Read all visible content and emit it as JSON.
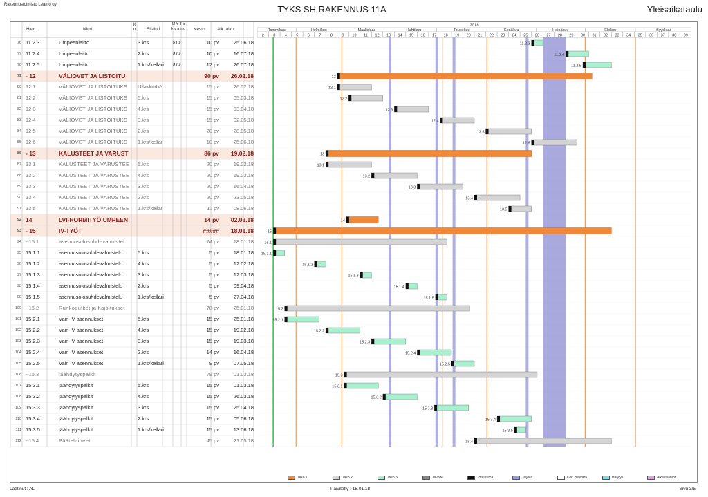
{
  "header": {
    "company": "Rakennustoimisto Leamo oy",
    "title": "TYKS SH RAKENNUS 11A",
    "schedule_type": "Yleisaikataulu"
  },
  "columns": {
    "hier": "Hier",
    "name": "Nimi",
    "ko": "K o",
    "location": "Sijainti",
    "myt": "M Y T a k y a s o",
    "duration": "Kesto",
    "start": "Aik. alku"
  },
  "timeline": {
    "year": "2018",
    "months": [
      "Tammikuu",
      "Helmikuu",
      "Maaliskuu",
      "Huhtikuu",
      "Toukokuu",
      "Kesäkuu",
      "Heinäkuu",
      "Elokuu",
      "Syyskuu"
    ],
    "weeks": [
      "2",
      "3",
      "4",
      "5",
      "6",
      "7",
      "8",
      "9",
      "10",
      "11",
      "12",
      "13",
      "14",
      "15",
      "16",
      "17",
      "18",
      "19",
      "20",
      "21",
      "22",
      "23",
      "24",
      "25",
      "26",
      "27",
      "28",
      "29",
      "30",
      "31",
      "32",
      "33",
      "34",
      "35",
      "36",
      "37",
      "38",
      "39"
    ]
  },
  "rows": [
    {
      "num": "76",
      "hier": "11.2.3",
      "name": "Umpeenlaitto",
      "loc": "3.krs",
      "flags": "♯ r ♯",
      "dur": "10 pv",
      "start": "25.06.18",
      "level": 3,
      "bar": {
        "s": 26,
        "e": 27,
        "label": "11.2.3"
      }
    },
    {
      "num": "77",
      "hier": "11.2.4",
      "name": "Umpeenlaitto",
      "loc": "2.krs",
      "flags": "♯ r ♯",
      "dur": "10 pv",
      "start": "16.07.18",
      "level": 3,
      "bar": {
        "s": 29,
        "e": 31,
        "label": "11.2.4"
      }
    },
    {
      "num": "78",
      "hier": "11.2.5",
      "name": "Umpeenlaitto",
      "loc": "1.krs/kellari",
      "flags": "♯ r ♯",
      "dur": "12 pv",
      "start": "26.07.18",
      "level": 3,
      "bar": {
        "s": 30.5,
        "e": 33,
        "label": "11.2.5"
      }
    },
    {
      "num": "79",
      "hier": "- 12",
      "name": "VÄLIOVET JA LISTOITU",
      "loc": "",
      "flags": "",
      "dur": "90 pv",
      "start": "26.02.18",
      "level": 1,
      "bar": {
        "s": 9,
        "e": 31.3,
        "label": "12"
      }
    },
    {
      "num": "80",
      "hier": "12.1",
      "name": "VÄLIOVET JA LISTOITUKS",
      "loc": "Ullakko/IV-",
      "flags": "",
      "dur": "15 pv",
      "start": "26.02.18",
      "level": 2,
      "bar": {
        "s": 9,
        "e": 12,
        "label": "12.1"
      }
    },
    {
      "num": "81",
      "hier": "12.2",
      "name": "VÄLIOVET JA LISTOITUKS",
      "loc": "5.krs",
      "flags": "",
      "dur": "15 pv",
      "start": "05.03.18",
      "level": 2,
      "bar": {
        "s": 10,
        "e": 13,
        "label": "12.2"
      }
    },
    {
      "num": "82",
      "hier": "12.3",
      "name": "VÄLIOVET JA LISTOITUKS",
      "loc": "4.krs",
      "flags": "",
      "dur": "15 pv",
      "start": "03.04.18",
      "level": 2,
      "bar": {
        "s": 14,
        "e": 17,
        "label": "12.3"
      }
    },
    {
      "num": "83",
      "hier": "12.4",
      "name": "VÄLIOVET JA LISTOITUKS",
      "loc": "3.krs",
      "flags": "",
      "dur": "15 pv",
      "start": "02.05.18",
      "level": 2,
      "bar": {
        "s": 18,
        "e": 21,
        "label": "12.4"
      }
    },
    {
      "num": "84",
      "hier": "12.5",
      "name": "VÄLIOVET JA LISTOITUKS",
      "loc": "2.krs",
      "flags": "",
      "dur": "20 pv",
      "start": "28.05.18",
      "level": 2,
      "bar": {
        "s": 22,
        "e": 26,
        "label": "12.5"
      }
    },
    {
      "num": "85",
      "hier": "12.6",
      "name": "VÄLIOVET JA LISTOITUKS",
      "loc": "1.krs/kellar",
      "flags": "",
      "dur": "10 pv",
      "start": "25.06.18",
      "level": 2,
      "bar": {
        "s": 26,
        "e": 30,
        "label": "12.6"
      }
    },
    {
      "num": "86",
      "hier": "- 13",
      "name": "KALUSTEET JA VARUST",
      "loc": "",
      "flags": "",
      "dur": "86 pv",
      "start": "19.02.18",
      "level": 1,
      "bar": {
        "s": 8,
        "e": 26,
        "label": "13"
      }
    },
    {
      "num": "87",
      "hier": "13.1",
      "name": "KALUSTEET JA VARUSTEE",
      "loc": "5.krs",
      "flags": "",
      "dur": "20 pv",
      "start": "19.02.18",
      "level": 2,
      "bar": {
        "s": 8,
        "e": 12,
        "label": "13.1"
      }
    },
    {
      "num": "88",
      "hier": "13.2",
      "name": "KALUSTEET JA VARUSTEE",
      "loc": "4.krs",
      "flags": "",
      "dur": "20 pv",
      "start": "19.03.18",
      "level": 2,
      "bar": {
        "s": 12,
        "e": 16,
        "label": "13.2"
      }
    },
    {
      "num": "89",
      "hier": "13.3",
      "name": "KALUSTEET JA VARUSTEE",
      "loc": "3.krs",
      "flags": "",
      "dur": "20 pv",
      "start": "16.04.18",
      "level": 2,
      "bar": {
        "s": 16,
        "e": 20,
        "label": "13.3"
      }
    },
    {
      "num": "90",
      "hier": "13.4",
      "name": "KALUSTEET JA VARUSTEE",
      "loc": "2.krs",
      "flags": "",
      "dur": "20 pv",
      "start": "23.05.18",
      "level": 2,
      "bar": {
        "s": 21,
        "e": 25,
        "label": "13.4"
      }
    },
    {
      "num": "91",
      "hier": "13.5",
      "name": "KALUSTEET JA VARUSTEE",
      "loc": "1.krs/kellar",
      "flags": "",
      "dur": "11 pv",
      "start": "08.06.18",
      "level": 2,
      "bar": {
        "s": 24,
        "e": 26,
        "label": "13.5"
      }
    },
    {
      "num": "92",
      "hier": "14",
      "name": "LVI-HORMITYÖ UMPEEN",
      "loc": "",
      "flags": "",
      "dur": "14 pv",
      "start": "02.03.18",
      "level": 1,
      "bar": {
        "s": 9.8,
        "e": 12.6,
        "label": "14"
      }
    },
    {
      "num": "93",
      "hier": "- 15",
      "name": "IV-TYÖT",
      "loc": "",
      "flags": "",
      "dur": "#####",
      "start": "18.01.18",
      "level": 1,
      "bar": {
        "s": 3.4,
        "e": 33,
        "label": "15"
      }
    },
    {
      "num": "94",
      "hier": "- 15.1",
      "name": "asennusolosuhdevalmistel",
      "loc": "",
      "flags": "",
      "dur": "74 pv",
      "start": "18.01.18",
      "level": 2,
      "bar": {
        "s": 3.4,
        "e": 18.6,
        "label": "15.1"
      }
    },
    {
      "num": "95",
      "hier": "15.1.1",
      "name": "asennusolosuhdevalmistelu",
      "loc": "5.krs",
      "flags": "",
      "dur": "5 pv",
      "start": "18.01.18",
      "level": 3,
      "bar": {
        "s": 3.4,
        "e": 4.4,
        "label": "15.1.1"
      }
    },
    {
      "num": "96",
      "hier": "15.1.2",
      "name": "asennusolosuhdevalmistelu",
      "loc": "4.krs",
      "flags": "",
      "dur": "5 pv",
      "start": "12.02.18",
      "level": 3,
      "bar": {
        "s": 7,
        "e": 8,
        "label": "15.1.2"
      }
    },
    {
      "num": "97",
      "hier": "15.1.3",
      "name": "asennusolosuhdevalmistelu",
      "loc": "3.krs",
      "flags": "",
      "dur": "5 pv",
      "start": "12.03.18",
      "level": 3,
      "bar": {
        "s": 11,
        "e": 12,
        "label": "15.1.3"
      }
    },
    {
      "num": "98",
      "hier": "15.1.4",
      "name": "asennusolosuhdevalmistelu",
      "loc": "2.krs",
      "flags": "",
      "dur": "5 pv",
      "start": "09.04.18",
      "level": 3,
      "bar": {
        "s": 15,
        "e": 16,
        "label": "15.1.4"
      }
    },
    {
      "num": "99",
      "hier": "15.1.5",
      "name": "asennusolosuhdevalmistelu",
      "loc": "1.krs/kellari",
      "flags": "",
      "dur": "5 pv",
      "start": "27.04.18",
      "level": 3,
      "bar": {
        "s": 17.6,
        "e": 18.6,
        "label": "15.1.5"
      }
    },
    {
      "num": "100",
      "hier": "- 15.2",
      "name": "Runkoputket ja hajoitukset",
      "loc": "",
      "flags": "",
      "dur": "78 pv",
      "start": "25.01.18",
      "level": 2,
      "bar": {
        "s": 4.4,
        "e": 20.6,
        "label": "15.2"
      }
    },
    {
      "num": "101",
      "hier": "15.2.1",
      "name": "Vain IV asennukset",
      "loc": "5.krs",
      "flags": "",
      "dur": "15 pv",
      "start": "25.01.18",
      "level": 3,
      "bar": {
        "s": 4.4,
        "e": 7.4,
        "label": "15.2.1"
      }
    },
    {
      "num": "102",
      "hier": "15.2.2",
      "name": "Vain IV asennukset",
      "loc": "4.krs",
      "flags": "",
      "dur": "15 pv",
      "start": "19.02.18",
      "level": 3,
      "bar": {
        "s": 8,
        "e": 11,
        "label": "15.2.2"
      }
    },
    {
      "num": "103",
      "hier": "15.2.3",
      "name": "Vain IV asennukset",
      "loc": "3.krs",
      "flags": "",
      "dur": "15 pv",
      "start": "19.03.18",
      "level": 3,
      "bar": {
        "s": 12,
        "e": 15,
        "label": "15.2.3"
      }
    },
    {
      "num": "104",
      "hier": "15.2.4",
      "name": "Vain IV asennukset",
      "loc": "2.krs",
      "flags": "",
      "dur": "14 pv",
      "start": "16.04.18",
      "level": 3,
      "bar": {
        "s": 16,
        "e": 19,
        "label": "15.2.4"
      }
    },
    {
      "num": "105",
      "hier": "15.2.5",
      "name": "Vain IV asennukset",
      "loc": "1.krs/kellari",
      "flags": "",
      "dur": "9 pv",
      "start": "07.05.18",
      "level": 3,
      "bar": {
        "s": 19,
        "e": 21,
        "label": "15.2.5"
      }
    },
    {
      "num": "106",
      "hier": "- 15.3",
      "name": "jäähdytyspalkit",
      "loc": "",
      "flags": "",
      "dur": "79 pv",
      "start": "01.03.18",
      "level": 2,
      "bar": {
        "s": 9.6,
        "e": 26.5,
        "label": "15.3"
      }
    },
    {
      "num": "107",
      "hier": "15.3.1",
      "name": "jäähdytyspalkit",
      "loc": "5.krs",
      "flags": "",
      "dur": "15 pv",
      "start": "01.03.18",
      "level": 3,
      "bar": {
        "s": 9.6,
        "e": 12.6,
        "label": "15.3.1"
      }
    },
    {
      "num": "108",
      "hier": "15.3.2",
      "name": "jäähdytyspalkit",
      "loc": "4.krs",
      "flags": "",
      "dur": "15 pv",
      "start": "26.03.18",
      "level": 3,
      "bar": {
        "s": 13,
        "e": 16,
        "label": "15.3.2"
      }
    },
    {
      "num": "109",
      "hier": "15.3.3",
      "name": "jäähdytyspalkit",
      "loc": "3.krs",
      "flags": "",
      "dur": "15 pv",
      "start": "25.04.18",
      "level": 3,
      "bar": {
        "s": 17.5,
        "e": 20.5,
        "label": "15.3.3"
      }
    },
    {
      "num": "110",
      "hier": "15.3.4",
      "name": "jäähdytyspalkit",
      "loc": "2.krs",
      "flags": "",
      "dur": "15 pv",
      "start": "05.06.18",
      "level": 3,
      "bar": {
        "s": 23,
        "e": 26,
        "label": "15.3.4"
      }
    },
    {
      "num": "111",
      "hier": "15.3.5",
      "name": "jäähdytyspalkit",
      "loc": "1.krs/kellari",
      "flags": "",
      "dur": "15 pv",
      "start": "13.06.18",
      "level": 3,
      "bar": {
        "s": 24.5,
        "e": 25.5,
        "label": "15.3.5"
      }
    },
    {
      "num": "112",
      "hier": "- 15.4",
      "name": "Päätelaitteet",
      "loc": "",
      "flags": "",
      "dur": "45 pv",
      "start": "21.05.18",
      "level": 2,
      "bar": {
        "s": 21,
        "e": 33,
        "label": "15.4"
      }
    }
  ],
  "legend": [
    {
      "label": "Taso 1",
      "color": "#f0883a"
    },
    {
      "label": "Taso 2",
      "color": "#d4d4d4"
    },
    {
      "label": "Taso 3",
      "color": "#a9f0d0"
    },
    {
      "label": "Tavoite",
      "color": "#888888"
    },
    {
      "label": "Toteutuma",
      "color": "#111111"
    },
    {
      "label": "Jäljellä",
      "color": "#9a9ad8"
    },
    {
      "label": "Kok. pelivara",
      "color": "#ffffff"
    },
    {
      "label": "Hälytys",
      "color": "#7fd8e0"
    },
    {
      "label": "Aikavälarvot",
      "color": "#e0a0e0"
    }
  ],
  "footer": {
    "author": "Laatinut : AL",
    "updated": "Päivitetty : 18.01.18",
    "page": "Sivu 3/5"
  },
  "colors": {
    "level1": "#f0883a",
    "level2": "#d4d4d4",
    "level3": "#a9f0d0",
    "holiday": "#9a9ad8",
    "today": "#2ecc40"
  }
}
